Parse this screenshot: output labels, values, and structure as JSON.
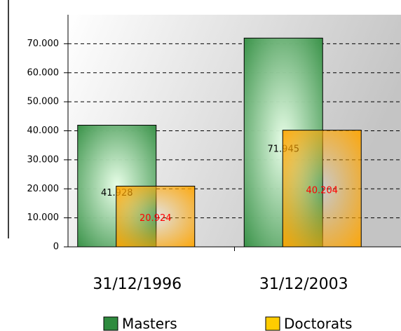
{
  "chart_data": {
    "type": "bar",
    "categories": [
      "31/12/1996",
      "31/12/2003"
    ],
    "series": [
      {
        "name": "Masters",
        "color": "#2e8b3e",
        "values": [
          41928,
          71945
        ],
        "value_labels": [
          "41.928",
          "71.945"
        ],
        "label_color": "#000000"
      },
      {
        "name": "Doctorats",
        "color": "#ffa500",
        "values": [
          20924,
          40204
        ],
        "value_labels": [
          "20.924",
          "40.204"
        ],
        "label_color": "#ff0000"
      }
    ],
    "ylim": [
      0,
      80000
    ],
    "yticks": [
      {
        "value": 0,
        "label": "0"
      },
      {
        "value": 10000,
        "label": "10.000"
      },
      {
        "value": 20000,
        "label": "20.000"
      },
      {
        "value": 30000,
        "label": "30.000"
      },
      {
        "value": 40000,
        "label": "40.000"
      },
      {
        "value": 50000,
        "label": "50.000"
      },
      {
        "value": 60000,
        "label": "60.000"
      },
      {
        "value": 70000,
        "label": "70.000"
      }
    ],
    "grid": true
  }
}
